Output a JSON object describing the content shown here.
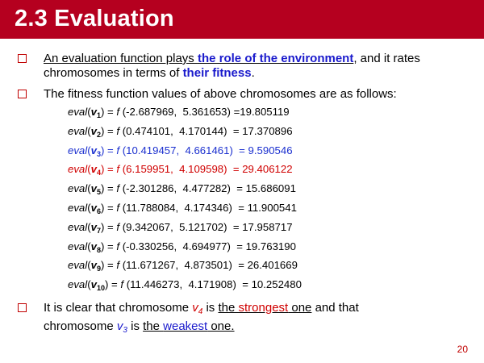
{
  "slide": {
    "title": "2.3 Evaluation",
    "page_number": "20"
  },
  "bullet1": {
    "line1_a": "An evaluation  function plays ",
    "line1_kw": "the role of the environment",
    "line1_b": ", and it rates",
    "line2_a": "chromosomes  in terms of ",
    "line2_kw": "their fitness",
    "line2_b": "."
  },
  "bullet2": {
    "text": "The fitness function values  of above chromosomes  are as follows:"
  },
  "evals": [
    {
      "sub": "1",
      "args": "(-2.687969,  5.361653) =19.805119"
    },
    {
      "sub": "2",
      "args": "(0.474101,  4.170144)  = 17.370896"
    },
    {
      "sub": "3",
      "args": "(10.419457,  4.661461)  = 9.590546"
    },
    {
      "sub": "4",
      "args": "(6.159951,  4.109598)  = 29.406122"
    },
    {
      "sub": "5",
      "args": "(-2.301286,  4.477282)  = 15.686091"
    },
    {
      "sub": "6",
      "args": "(11.788084,  4.174346)  = 11.900541"
    },
    {
      "sub": "7",
      "args": "(9.342067,  5.121702)  = 17.958717"
    },
    {
      "sub": "8",
      "args": "(-0.330256,  4.694977)  = 19.763190"
    },
    {
      "sub": "9",
      "args": "(11.671267,  4.873501)  = 26.401669"
    },
    {
      "sub": "10",
      "args": "(11.446273,  4.171908)  = 10.252480"
    }
  ],
  "eval_func": "eval",
  "eval_var": "v",
  "f_symbol": "f",
  "bullet3": {
    "line1_a": "It is clear that chromosome ",
    "v_strong": "v",
    "v_strong_sub": "4",
    "line1_b": " is ",
    "line1_the": "the ",
    "line1_strongest": "strongest",
    "line1_one": " one",
    "line1_c": " and that",
    "line2_a": "chromosome ",
    "v_weak": "v",
    "v_weak_sub": "3",
    "line2_b": " is ",
    "line2_the": "the ",
    "line2_weakest": "weakest",
    "line2_one": "  one."
  },
  "colors": {
    "title_bar": "#b5001f",
    "accent_red": "#d00000",
    "accent_blue": "#1a1acc"
  }
}
